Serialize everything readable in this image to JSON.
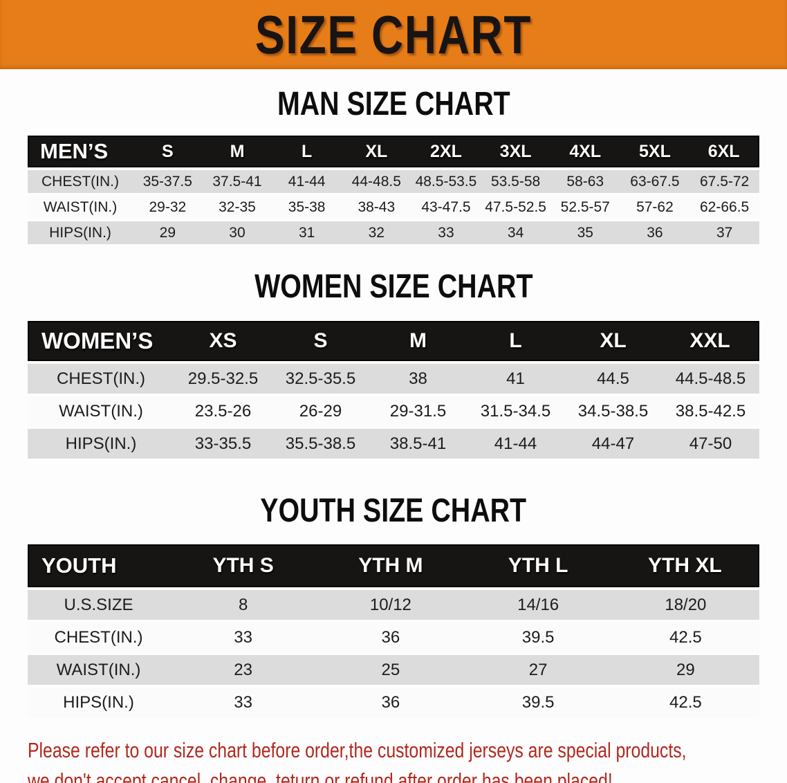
{
  "banner": {
    "title": "SIZE CHART",
    "bg_color": "#e67d18",
    "text_color": "#181414"
  },
  "sections": [
    {
      "heading": "MAN SIZE CHART",
      "table": {
        "columns": [
          "MEN’S",
          "S",
          "M",
          "L",
          "XL",
          "2XL",
          "3XL",
          "4XL",
          "5XL",
          "6XL"
        ],
        "rows": [
          {
            "label": "CHEST(IN.)",
            "values": [
              "35-37.5",
              "37.5-41",
              "41-44",
              "44-48.5",
              "48.5-53.5",
              "53.5-58",
              "58-63",
              "63-67.5",
              "67.5-72"
            ]
          },
          {
            "label": "WAIST(IN.)",
            "values": [
              "29-32",
              "32-35",
              "35-38",
              "38-43",
              "43-47.5",
              "47.5-52.5",
              "52.5-57",
              "57-62",
              "62-66.5"
            ]
          },
          {
            "label": "HIPS(IN.)",
            "values": [
              "29",
              "30",
              "31",
              "32",
              "33",
              "34",
              "35",
              "36",
              "37"
            ]
          }
        ]
      }
    },
    {
      "heading": "WOMEN SIZE CHART",
      "table": {
        "columns": [
          "WOMEN’S",
          "XS",
          "S",
          "M",
          "L",
          "XL",
          "XXL"
        ],
        "rows": [
          {
            "label": "CHEST(IN.)",
            "values": [
              "29.5-32.5",
              "32.5-35.5",
              "38",
              "41",
              "44.5",
              "44.5-48.5"
            ]
          },
          {
            "label": "WAIST(IN.)",
            "values": [
              "23.5-26",
              "26-29",
              "29-31.5",
              "31.5-34.5",
              "34.5-38.5",
              "38.5-42.5"
            ]
          },
          {
            "label": "HIPS(IN.)",
            "values": [
              "33-35.5",
              "35.5-38.5",
              "38.5-41",
              "41-44",
              "44-47",
              "47-50"
            ]
          }
        ]
      }
    },
    {
      "heading": "YOUTH SIZE CHART",
      "table": {
        "columns": [
          "YOUTH",
          "YTH S",
          "YTH M",
          "YTH L",
          "YTH XL"
        ],
        "rows": [
          {
            "label": "U.S.SIZE",
            "values": [
              "8",
              "10/12",
              "14/16",
              "18/20"
            ]
          },
          {
            "label": "CHEST(IN.)",
            "values": [
              "33",
              "36",
              "39.5",
              "42.5"
            ]
          },
          {
            "label": "WAIST(IN.)",
            "values": [
              "23",
              "25",
              "27",
              "29"
            ]
          },
          {
            "label": "HIPS(IN.)",
            "values": [
              "33",
              "36",
              "39.5",
              "42.5"
            ]
          }
        ]
      }
    }
  ],
  "footer": {
    "text_color": "#b2281e",
    "lines": [
      "Please refer to our size chart before order,the customized jerseys are special products,",
      "we don't accept cancel, change, teturn or refund after order has been placed!"
    ]
  }
}
